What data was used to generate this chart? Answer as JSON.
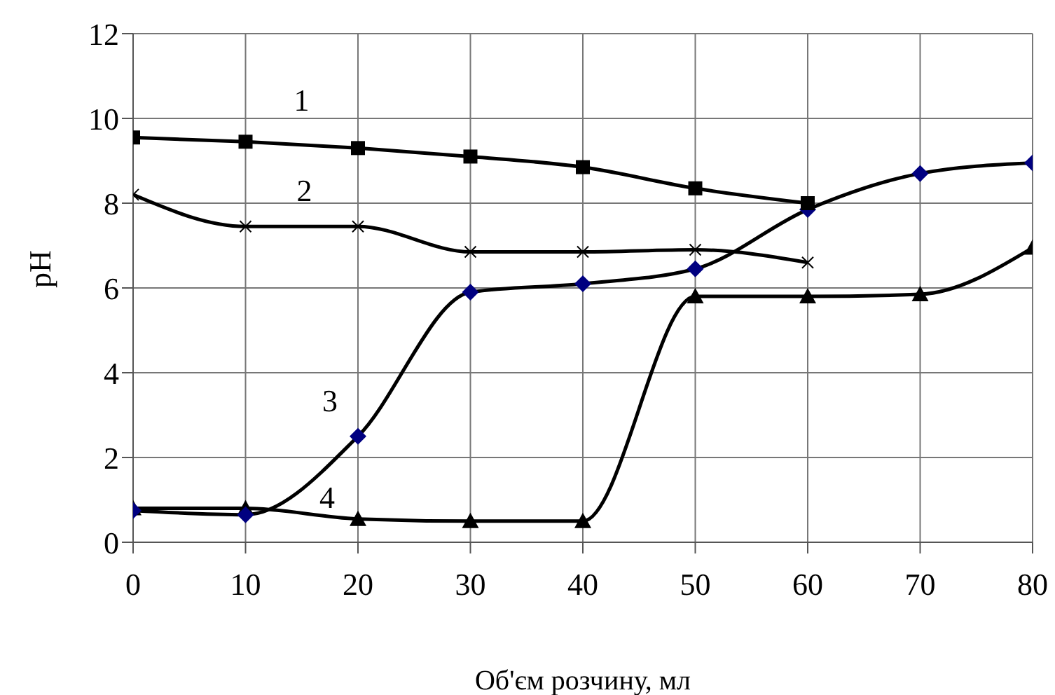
{
  "chart_data": {
    "type": "line",
    "xlabel": "Об'єм розчину, мл",
    "ylabel": "pH",
    "x": [
      0,
      10,
      20,
      30,
      40,
      50,
      60,
      70,
      80
    ],
    "xlim": [
      0,
      80
    ],
    "xticks": [
      0,
      10,
      20,
      30,
      40,
      50,
      60,
      70,
      80
    ],
    "ylim": [
      0,
      12
    ],
    "yticks": [
      0,
      2,
      4,
      6,
      8,
      10,
      12
    ],
    "grid": true,
    "legend": false,
    "line_style": "solid",
    "series": [
      {
        "name": "1",
        "color": "#000000",
        "marker": "square",
        "x": [
          0,
          10,
          20,
          30,
          40,
          50,
          60
        ],
        "values": [
          9.55,
          9.45,
          9.3,
          9.1,
          8.85,
          8.35,
          8.0
        ]
      },
      {
        "name": "2",
        "color": "#000000",
        "marker": "cross",
        "x": [
          0,
          10,
          20,
          30,
          40,
          50,
          60
        ],
        "values": [
          8.2,
          7.45,
          7.45,
          6.85,
          6.85,
          6.9,
          6.6
        ]
      },
      {
        "name": "3",
        "color": "#000000",
        "marker": "diamond",
        "colors": [
          "#000080",
          "#000080",
          "#000080",
          "#000080",
          "#000080",
          "#000080",
          "#000080",
          "#000080",
          "#000080"
        ],
        "values": [
          0.75,
          0.65,
          2.5,
          5.9,
          6.1,
          6.45,
          7.85,
          8.7,
          8.95
        ]
      },
      {
        "name": "4",
        "color": "#000000",
        "marker": "triangle",
        "values": [
          0.8,
          0.8,
          0.55,
          0.5,
          0.5,
          5.8,
          5.8,
          5.85,
          6.95
        ]
      }
    ]
  }
}
